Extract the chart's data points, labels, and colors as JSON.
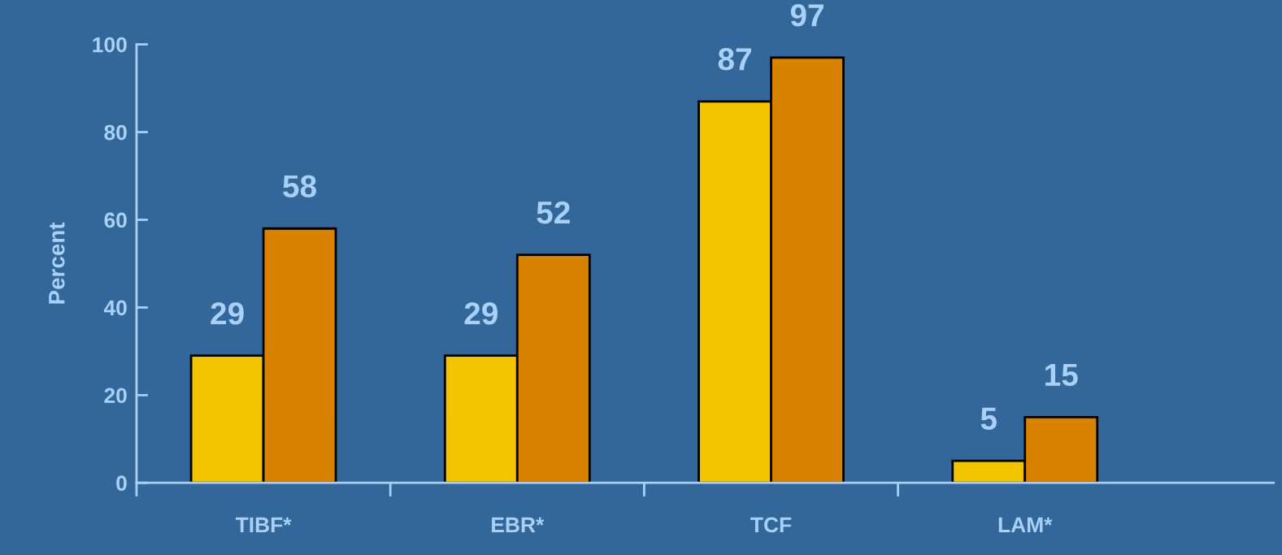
{
  "chart_data": {
    "type": "bar",
    "ylabel": "Percent",
    "categories": [
      "TIBF*",
      "EBR*",
      "TCF",
      "LAM*"
    ],
    "series": [
      {
        "color": "#f2c400",
        "values": [
          29,
          29,
          87,
          5
        ]
      },
      {
        "color": "#d98200",
        "values": [
          58,
          52,
          97,
          15
        ]
      }
    ],
    "ylim": [
      0,
      100
    ],
    "yticks": [
      0,
      20,
      40,
      60,
      80,
      100
    ],
    "data_labels": true,
    "grid": false,
    "legend": false
  }
}
